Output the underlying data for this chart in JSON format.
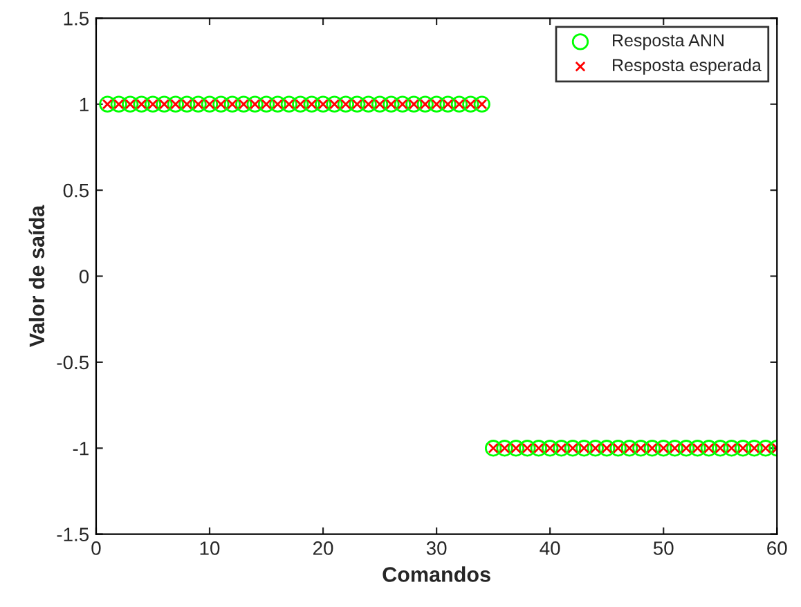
{
  "chart_data": {
    "type": "scatter",
    "xlabel": "Comandos",
    "ylabel": "Valor de saída",
    "x": [
      1,
      2,
      3,
      4,
      5,
      6,
      7,
      8,
      9,
      10,
      11,
      12,
      13,
      14,
      15,
      16,
      17,
      18,
      19,
      20,
      21,
      22,
      23,
      24,
      25,
      26,
      27,
      28,
      29,
      30,
      31,
      32,
      33,
      34,
      35,
      36,
      37,
      38,
      39,
      40,
      41,
      42,
      43,
      44,
      45,
      46,
      47,
      48,
      49,
      50,
      51,
      52,
      53,
      54,
      55,
      56,
      57,
      58,
      59,
      60
    ],
    "series": [
      {
        "name": "Resposta ANN",
        "color": "#00ff00",
        "marker": "circle",
        "values": [
          1,
          1,
          1,
          1,
          1,
          1,
          1,
          1,
          1,
          1,
          1,
          1,
          1,
          1,
          1,
          1,
          1,
          1,
          1,
          1,
          1,
          1,
          1,
          1,
          1,
          1,
          1,
          1,
          1,
          1,
          1,
          1,
          1,
          1,
          -1,
          -1,
          -1,
          -1,
          -1,
          -1,
          -1,
          -1,
          -1,
          -1,
          -1,
          -1,
          -1,
          -1,
          -1,
          -1,
          -1,
          -1,
          -1,
          -1,
          -1,
          -1,
          -1,
          -1,
          -1,
          -1
        ]
      },
      {
        "name": "Resposta esperada",
        "color": "#ff0000",
        "marker": "cross",
        "values": [
          1,
          1,
          1,
          1,
          1,
          1,
          1,
          1,
          1,
          1,
          1,
          1,
          1,
          1,
          1,
          1,
          1,
          1,
          1,
          1,
          1,
          1,
          1,
          1,
          1,
          1,
          1,
          1,
          1,
          1,
          1,
          1,
          1,
          1,
          -1,
          -1,
          -1,
          -1,
          -1,
          -1,
          -1,
          -1,
          -1,
          -1,
          -1,
          -1,
          -1,
          -1,
          -1,
          -1,
          -1,
          -1,
          -1,
          -1,
          -1,
          -1,
          -1,
          -1,
          -1,
          -1
        ]
      }
    ],
    "xlim": [
      0,
      60
    ],
    "xticks": [
      0,
      10,
      20,
      30,
      40,
      50,
      60
    ],
    "ylim": [
      -1.5,
      1.5
    ],
    "yticks": [
      -1.5,
      -1,
      -0.5,
      0,
      0.5,
      1,
      1.5
    ],
    "grid": false,
    "legend": "top right"
  }
}
